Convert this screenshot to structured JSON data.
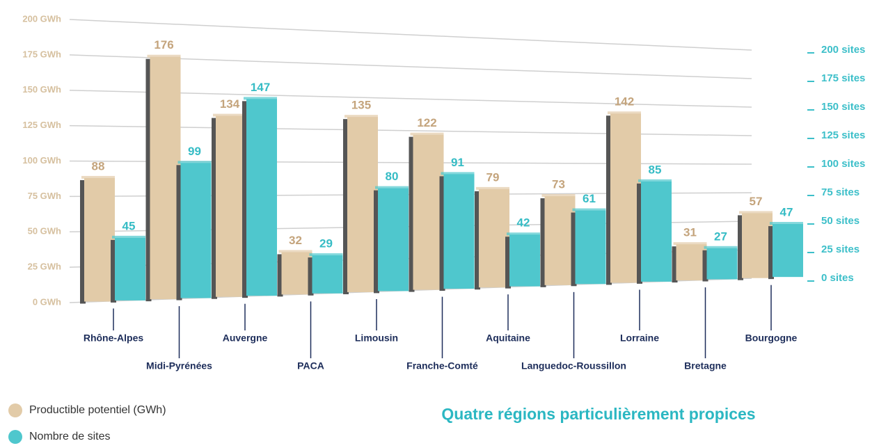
{
  "chart_data": {
    "type": "bar",
    "categories": [
      "Rhône-Alpes",
      "Midi-Pyrénées",
      "Auvergne",
      "PACA",
      "Limousin",
      "Franche-Comté",
      "Aquitaine",
      "Languedoc-Roussillon",
      "Lorraine",
      "Bretagne",
      "Bourgogne"
    ],
    "series": [
      {
        "name": "Productible potentiel (GWh)",
        "color": "#e2cba8",
        "values": [
          88,
          176,
          134,
          32,
          135,
          122,
          79,
          73,
          142,
          31,
          57
        ]
      },
      {
        "name": "Nombre de sites",
        "color": "#4fc7cd",
        "axis": "y2",
        "values": [
          45,
          99,
          147,
          29,
          80,
          91,
          42,
          61,
          85,
          27,
          47
        ]
      }
    ],
    "ylim": [
      0,
      200
    ],
    "yticks": [
      {
        "value": 0,
        "label": "0 GWh"
      },
      {
        "value": 25,
        "label": "25 GWh"
      },
      {
        "value": 50,
        "label": "50 GWh"
      },
      {
        "value": 75,
        "label": "75 GWh"
      },
      {
        "value": 100,
        "label": "100 GWh"
      },
      {
        "value": 125,
        "label": "125 GWh"
      },
      {
        "value": 150,
        "label": "150 GWh"
      },
      {
        "value": 175,
        "label": "175 GWh"
      },
      {
        "value": 200,
        "label": "200 GWh"
      }
    ],
    "y2lim": [
      0,
      200
    ],
    "y2ticks": [
      {
        "value": 0,
        "label": "0 sites"
      },
      {
        "value": 25,
        "label": "25 sites"
      },
      {
        "value": 50,
        "label": "50 sites"
      },
      {
        "value": 75,
        "label": "75 sites"
      },
      {
        "value": 100,
        "label": "100 sites"
      },
      {
        "value": 125,
        "label": "125 sites"
      },
      {
        "value": 150,
        "label": "150 sites"
      },
      {
        "value": 175,
        "label": "175 sites"
      },
      {
        "value": 200,
        "label": "200 sites"
      }
    ],
    "grid": true,
    "annotation": "Quatre régions particulièrement propices"
  }
}
